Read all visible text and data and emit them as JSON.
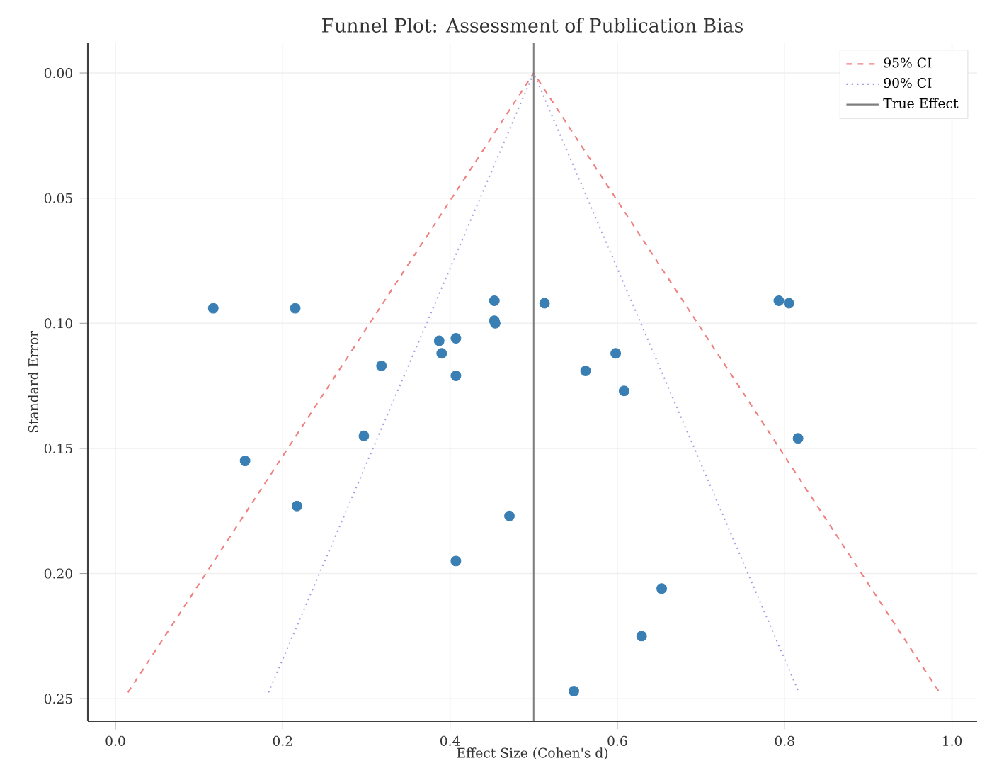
{
  "chart_data": {
    "type": "scatter",
    "title": "Funnel Plot: Assessment of Publication Bias",
    "xlabel": "Effect Size (Cohen's d)",
    "ylabel": "Standard Error",
    "xlim": [
      -0.033,
      1.03
    ],
    "ylim": [
      0.259,
      -0.012
    ],
    "xticks": [
      {
        "value": 0,
        "label": "0.0"
      },
      0.2,
      0.4,
      0.6,
      0.8,
      {
        "value": 1,
        "label": "1.0"
      }
    ],
    "yticks": [
      {
        "value": 0,
        "label": "0.00"
      },
      0.05,
      {
        "value": 0.1,
        "label": "0.10"
      },
      0.15,
      {
        "value": 0.2,
        "label": "0.20"
      },
      0.25
    ],
    "grid": true,
    "legend": "top right",
    "marker": "circle",
    "series": [
      {
        "color": "#3a7fb4",
        "x": [
          0.117,
          0.215,
          0.453,
          0.513,
          0.793,
          0.805,
          0.453,
          0.454,
          0.387,
          0.407,
          0.39,
          0.598,
          0.318,
          0.562,
          0.407,
          0.608,
          0.297,
          0.816,
          0.155,
          0.217,
          0.471,
          0.407,
          0.653,
          0.629,
          0.548
        ],
        "values": [
          0.094,
          0.094,
          0.091,
          0.092,
          0.091,
          0.092,
          0.099,
          0.1,
          0.107,
          0.106,
          0.112,
          0.112,
          0.117,
          0.119,
          0.121,
          0.127,
          0.145,
          0.146,
          0.155,
          0.173,
          0.177,
          0.195,
          0.206,
          0.225,
          0.247
        ]
      },
      {
        "type": "line",
        "name": "95% CI",
        "marker": "none",
        "color": "#f08080",
        "line_style": "dashed",
        "x": [
          0.015,
          0.5,
          0.985
        ],
        "values": [
          0.2475,
          0,
          0.2475
        ]
      },
      {
        "type": "line",
        "name": "90% CI",
        "marker": "none",
        "color": "#9c9ce0",
        "line_style": "dotted",
        "x": [
          0.183,
          0.5,
          0.817
        ],
        "values": [
          0.2475,
          0,
          0.2475
        ]
      },
      {
        "type": "line",
        "name": "True Effect",
        "marker": "none",
        "color": "#7f7f7f",
        "line_style": "solid",
        "x": [
          0.5,
          0.5
        ],
        "values": [
          0.259,
          -0.012
        ]
      }
    ]
  }
}
